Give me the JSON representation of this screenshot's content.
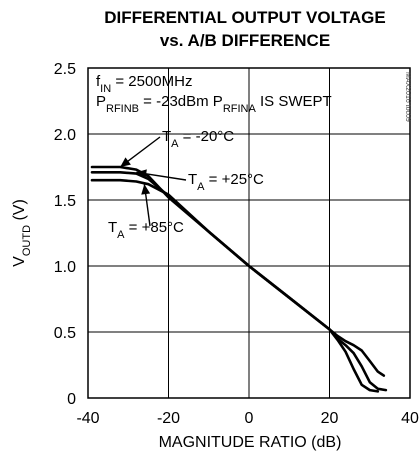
{
  "chart_data": {
    "type": "line",
    "title": [
      "DIFFERENTIAL OUTPUT VOLTAGE",
      "vs. A/B DIFFERENCE"
    ],
    "xlabel": "MAGNITUDE RATIO (dB)",
    "ylabel": {
      "main": "V",
      "sub": "OUTD",
      "rest": " (V)"
    },
    "xlim": [
      -40,
      40
    ],
    "ylim": [
      0,
      2.5
    ],
    "xticks": [
      "-40",
      "-20",
      "0",
      "20",
      "40"
    ],
    "yticks": [
      "0",
      "0.5",
      "1.0",
      "1.5",
      "2.0",
      "2.5"
    ],
    "grid": true,
    "series": [
      {
        "name": "TA = -20°C",
        "x": [
          -39,
          -32,
          -28,
          -25,
          -20,
          -10,
          0,
          10,
          20,
          22,
          24,
          26,
          28,
          30,
          32,
          33.5
        ],
        "y": [
          1.75,
          1.75,
          1.73,
          1.68,
          1.52,
          1.26,
          1.0,
          0.76,
          0.52,
          0.47,
          0.43,
          0.4,
          0.36,
          0.28,
          0.2,
          0.17
        ]
      },
      {
        "name": "TA = +25°C",
        "x": [
          -39,
          -32,
          -28,
          -25,
          -20,
          -10,
          0,
          10,
          20,
          22,
          24,
          26,
          28,
          30,
          32,
          34
        ],
        "y": [
          1.71,
          1.71,
          1.7,
          1.66,
          1.53,
          1.26,
          1.0,
          0.76,
          0.52,
          0.45,
          0.4,
          0.34,
          0.24,
          0.12,
          0.07,
          0.06
        ]
      },
      {
        "name": "TA = +85°C",
        "x": [
          -39,
          -32,
          -28,
          -25,
          -20,
          -10,
          0,
          10,
          20,
          22,
          24,
          26,
          28,
          30,
          32
        ],
        "y": [
          1.65,
          1.65,
          1.64,
          1.62,
          1.54,
          1.26,
          1.0,
          0.76,
          0.52,
          0.44,
          0.35,
          0.22,
          0.1,
          0.06,
          0.05
        ]
      }
    ],
    "conditions": [
      {
        "main": "f",
        "sub": "IN",
        "rest": " = 2500MHz"
      },
      {
        "parts": [
          {
            "t": "P",
            "sub": false
          },
          {
            "t": "RFINB",
            "sub": true
          },
          {
            "t": " = -23dBm P",
            "sub": false
          },
          {
            "t": "RFINA",
            "sub": true
          },
          {
            "t": " IS SWEPT",
            "sub": false
          }
        ]
      }
    ],
    "annotations": [
      {
        "series": 0,
        "main": "T",
        "sub": "A",
        "rest": " = -20°C",
        "point": [
          -32,
          1.75
        ]
      },
      {
        "series": 1,
        "main": "T",
        "sub": "A",
        "rest": " = +25°C",
        "point": [
          -28,
          1.71
        ]
      },
      {
        "series": 2,
        "main": "T",
        "sub": "A",
        "rest": " = +85°C",
        "point": [
          -26,
          1.62
        ]
      }
    ],
    "watermark": "MAX2016 toc09"
  }
}
